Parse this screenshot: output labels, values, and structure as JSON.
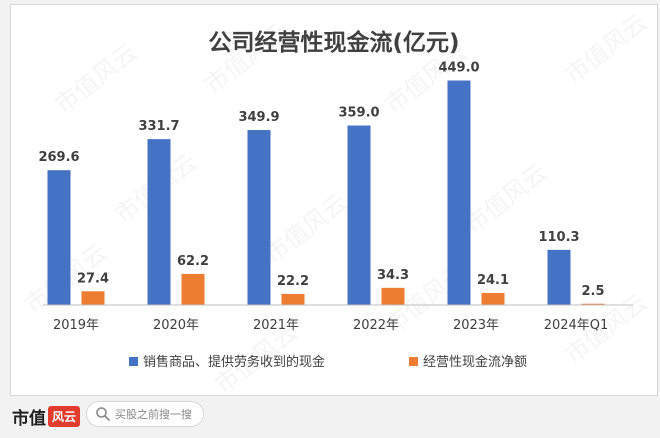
{
  "chart_data": {
    "type": "bar",
    "title": "公司经营性现金流(亿元)",
    "categories": [
      "2019年",
      "2020年",
      "2021年",
      "2022年",
      "2023年",
      "2024年Q1"
    ],
    "series": [
      {
        "name": "销售商品、提供劳务收到的现金",
        "values": [
          269.6,
          331.7,
          349.9,
          359.0,
          449.0,
          110.3
        ],
        "labels": [
          "269.6",
          "331.7",
          "349.9",
          "359.0",
          "449.0",
          "110.3"
        ],
        "color": "#4472c4"
      },
      {
        "name": "经营性现金流净额",
        "values": [
          27.4,
          62.2,
          22.2,
          34.3,
          24.1,
          2.5
        ],
        "labels": [
          "27.4",
          "62.2",
          "22.2",
          "34.3",
          "24.1",
          "2.5"
        ],
        "color": "#ed7d31"
      }
    ],
    "ylim": [
      0,
      500
    ],
    "grid": false,
    "legend_position": "bottom"
  },
  "watermark": "市值风云",
  "footer": {
    "brand_text": "市值",
    "brand_stamp": "风云",
    "search_placeholder": "买股之前搜一搜",
    "search_icon": "search-icon"
  }
}
